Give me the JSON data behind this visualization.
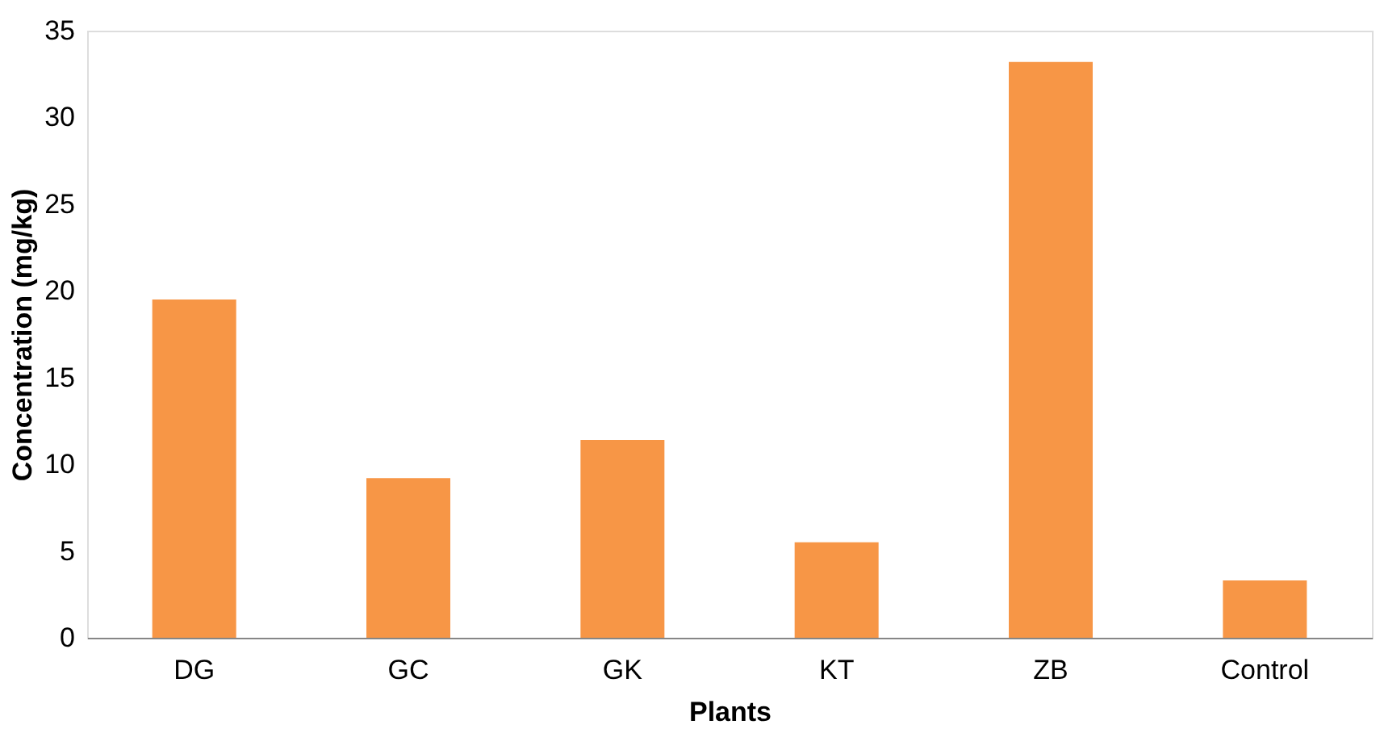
{
  "chart_data": {
    "type": "bar",
    "xlabel": "Plants",
    "ylabel": "Concentration (mg/kg)",
    "categories": [
      "DG",
      "GC",
      "GK",
      "KT",
      "ZB",
      "Control"
    ],
    "values": [
      19.5,
      9.2,
      11.4,
      5.5,
      33.2,
      3.3
    ],
    "color": "#f79646",
    "ylim": [
      0,
      35
    ],
    "yticks": [
      0,
      5,
      10,
      15,
      20,
      25,
      30,
      35
    ],
    "grid": false
  }
}
